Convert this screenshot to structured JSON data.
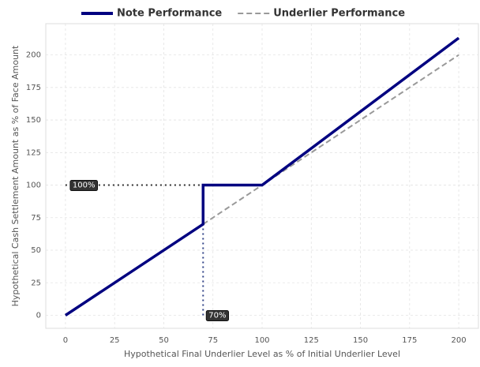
{
  "chart_data": {
    "type": "line",
    "xlabel": "Hypothetical Final Underlier Level as % of Initial Underlier Level",
    "ylabel": "Hypothetical Cash Settlement Amount as % of Face Amount",
    "series": [
      {
        "name": "Note Performance",
        "color": "#000080",
        "style": "solid",
        "x": [
          0,
          70,
          70,
          100,
          200
        ],
        "values": [
          0,
          70,
          100,
          100,
          213
        ]
      },
      {
        "name": "Underlier Performance",
        "color": "#999999",
        "style": "dashed",
        "x": [
          0,
          200
        ],
        "values": [
          0,
          200
        ]
      }
    ],
    "annotations": [
      {
        "label": "100%",
        "value": 100,
        "axis": "y"
      },
      {
        "label": "70%",
        "value": 70,
        "axis": "x"
      }
    ],
    "xlim": [
      -10,
      210
    ],
    "ylim": [
      -10,
      224
    ],
    "xticks": [
      0,
      25,
      50,
      75,
      100,
      125,
      150,
      175,
      200
    ],
    "yticks": [
      0,
      25,
      50,
      75,
      100,
      125,
      150,
      175,
      200
    ],
    "grid": true,
    "legend": "top"
  }
}
